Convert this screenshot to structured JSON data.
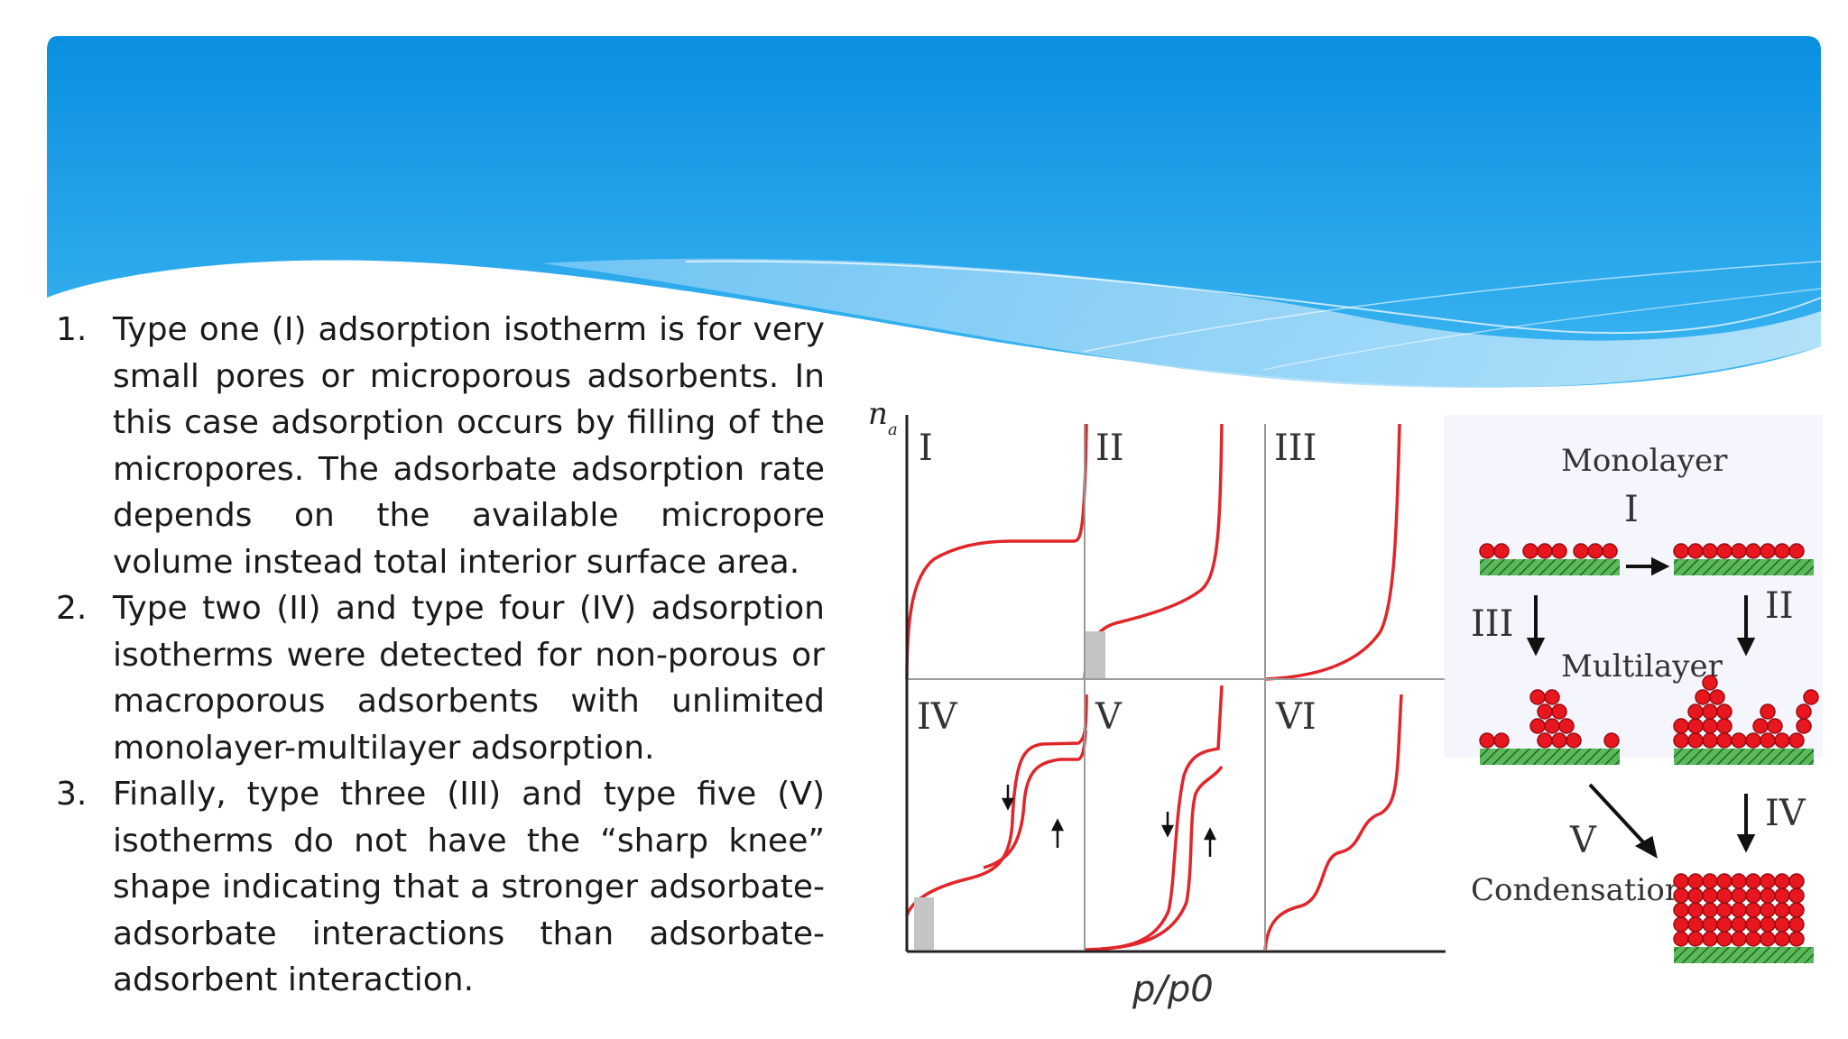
{
  "text_items": [
    {
      "number": "1.",
      "text": "Type one (I) adsorption isotherm is for very small pores or microporous adsorbents. In this case adsorption occurs by filling of the micropores. The adsorbate adsorption rate depends on the available micropore volume instead total interior surface area."
    },
    {
      "number": "2.",
      "text": "Type two (II) and type four (IV) adsorption isotherms were detected for non-porous or macroporous adsorbents with unlimited monolayer-multilayer adsorption."
    },
    {
      "number": "3.",
      "text": "Finally, type three (III) and type five (V) isotherms do not have the “sharp knee” shape indicating that a stronger adsorbate-adsorbate interactions than adsorbate-adsorbent interaction."
    }
  ],
  "isotherm_figure": {
    "y_axis_label": "n",
    "y_axis_subscript": "a",
    "x_axis_label": "p/p0",
    "panels": [
      "I",
      "II",
      "III",
      "IV",
      "V",
      "VI"
    ],
    "curve_color": "#e0262a"
  },
  "mechanism_figure": {
    "monolayer_label": "Monolayer",
    "multilayer_label": "Multilayer",
    "condensation_label": "Condensation",
    "arrow_labels": {
      "I": "I",
      "II": "II",
      "III": "III",
      "IV": "IV",
      "V": "V"
    },
    "sphere_color": "#e8161e",
    "surface_color": "#3a9a3a"
  },
  "colors": {
    "banner_top": "#0a8fe0",
    "banner_bottom": "#2fb0f0",
    "wave_light": "#9fd6f6"
  }
}
